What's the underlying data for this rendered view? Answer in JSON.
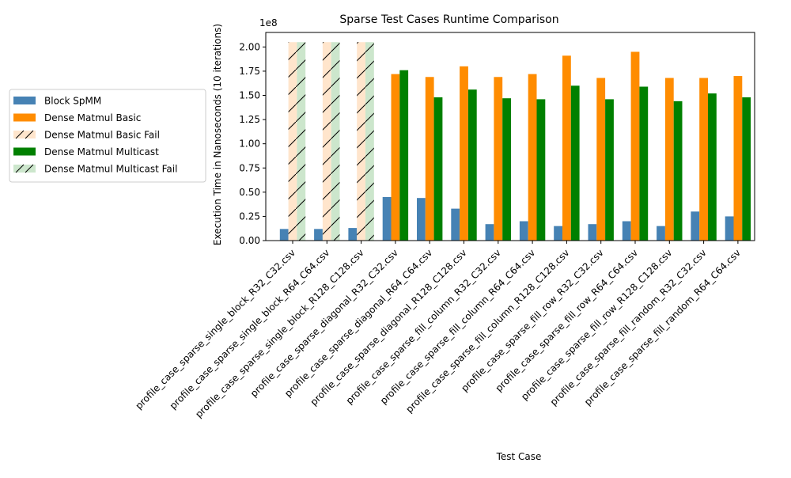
{
  "chart_data": {
    "type": "bar",
    "title": "Sparse Test Cases Runtime Comparison",
    "xlabel": "Test Case",
    "ylabel": "Execution Time in Nanoseconds (10 iterations)",
    "offset_label": "1e8",
    "scale": 100000000,
    "ylim": [
      0,
      2.15
    ],
    "yticks": [
      "0.00",
      "0.25",
      "0.50",
      "0.75",
      "1.00",
      "1.25",
      "1.50",
      "1.75",
      "2.00"
    ],
    "grid": false,
    "legend_position": "left, outside plot",
    "categories": [
      "profile_case_sparse_single_block_R32_C32.csv",
      "profile_case_sparse_single_block_R64_C64.csv",
      "profile_case_sparse_single_block_R128_C128.csv",
      "profile_case_sparse_diagonal_R32_C32.csv",
      "profile_case_sparse_diagonal_R64_C64.csv",
      "profile_case_sparse_diagonal_R128_C128.csv",
      "profile_case_sparse_fill_column_R32_C32.csv",
      "profile_case_sparse_fill_column_R64_C64.csv",
      "profile_case_sparse_fill_column_R128_C128.csv",
      "profile_case_sparse_fill_row_R32_C32.csv",
      "profile_case_sparse_fill_row_R64_C64.csv",
      "profile_case_sparse_fill_row_R128_C128.csv",
      "profile_case_sparse_fill_random_R32_C32.csv",
      "profile_case_sparse_fill_random_R64_C64.csv"
    ],
    "series": [
      {
        "name": "Block SpMM",
        "color": "#4682b4",
        "values": [
          0.12,
          0.12,
          0.13,
          0.45,
          0.44,
          0.33,
          0.17,
          0.2,
          0.15,
          0.17,
          0.2,
          0.15,
          0.3,
          0.25
        ]
      },
      {
        "name": "Dense Matmul Basic",
        "color": "#ff8c00",
        "values": [
          null,
          null,
          null,
          1.72,
          1.69,
          1.8,
          1.69,
          1.72,
          1.91,
          1.68,
          1.95,
          1.68,
          1.68,
          1.7
        ]
      },
      {
        "name": "Dense Matmul Multicast",
        "color": "#008000",
        "values": [
          null,
          null,
          null,
          1.76,
          1.48,
          1.56,
          1.47,
          1.46,
          1.6,
          1.46,
          1.59,
          1.44,
          1.52,
          1.48
        ]
      }
    ],
    "fail_series": [
      {
        "name": "Dense Matmul Basic Fail",
        "fill": "#ffe5cc",
        "values": [
          2.05,
          2.05,
          2.05,
          null,
          null,
          null,
          null,
          null,
          null,
          null,
          null,
          null,
          null,
          null
        ]
      },
      {
        "name": "Dense Matmul Multicast Fail",
        "fill": "#cce6cc",
        "values": [
          2.05,
          2.05,
          2.05,
          null,
          null,
          null,
          null,
          null,
          null,
          null,
          null,
          null,
          null,
          null
        ]
      }
    ],
    "legend": [
      "Block SpMM",
      "Dense Matmul Basic",
      "Dense Matmul Basic Fail",
      "Dense Matmul Multicast",
      "Dense Matmul Multicast Fail"
    ]
  }
}
